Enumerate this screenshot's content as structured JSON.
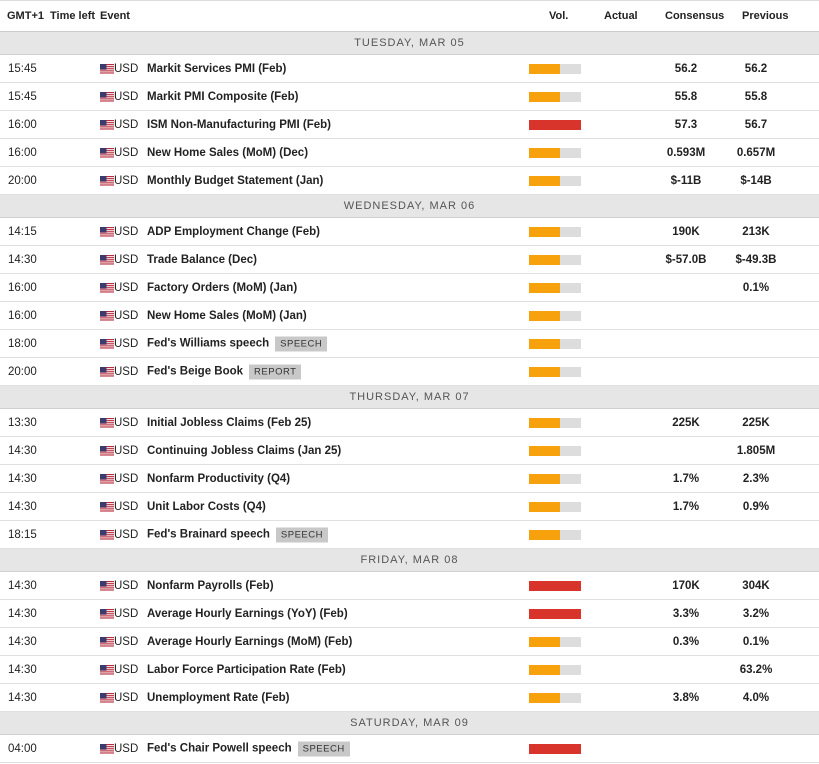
{
  "header": {
    "columns": [
      "GMT+1",
      "Time left",
      "Event",
      "Vol.",
      "Actual",
      "Consensus",
      "Previous"
    ]
  },
  "days": [
    {
      "title": "TUESDAY, MAR 05",
      "rows": [
        {
          "time": "15:45",
          "currency": "USD",
          "event": "Markit Services PMI (Feb)",
          "vol": "medium",
          "consensus": "56.2",
          "previous": "56.2"
        },
        {
          "time": "15:45",
          "currency": "USD",
          "event": "Markit PMI Composite (Feb)",
          "vol": "medium",
          "consensus": "55.8",
          "previous": "55.8"
        },
        {
          "time": "16:00",
          "currency": "USD",
          "event": "ISM Non-Manufacturing PMI (Feb)",
          "vol": "high",
          "consensus": "57.3",
          "previous": "56.7"
        },
        {
          "time": "16:00",
          "currency": "USD",
          "event": "New Home Sales (MoM) (Dec)",
          "vol": "medium",
          "consensus": "0.593M",
          "previous": "0.657M"
        },
        {
          "time": "20:00",
          "currency": "USD",
          "event": "Monthly Budget Statement (Jan)",
          "vol": "medium",
          "consensus": "$-11B",
          "previous": "$-14B"
        }
      ]
    },
    {
      "title": "WEDNESDAY, MAR 06",
      "rows": [
        {
          "time": "14:15",
          "currency": "USD",
          "event": "ADP Employment Change (Feb)",
          "vol": "medium",
          "consensus": "190K",
          "previous": "213K"
        },
        {
          "time": "14:30",
          "currency": "USD",
          "event": "Trade Balance (Dec)",
          "vol": "medium",
          "consensus": "$-57.0B",
          "previous": "$-49.3B"
        },
        {
          "time": "16:00",
          "currency": "USD",
          "event": "Factory Orders (MoM) (Jan)",
          "vol": "medium",
          "previous": "0.1%"
        },
        {
          "time": "16:00",
          "currency": "USD",
          "event": "New Home Sales (MoM) (Jan)",
          "vol": "medium"
        },
        {
          "time": "18:00",
          "currency": "USD",
          "event": "Fed's Williams speech",
          "tag": "SPEECH",
          "vol": "medium"
        },
        {
          "time": "20:00",
          "currency": "USD",
          "event": "Fed's Beige Book",
          "tag": "REPORT",
          "vol": "medium"
        }
      ]
    },
    {
      "title": "THURSDAY, MAR 07",
      "rows": [
        {
          "time": "13:30",
          "currency": "USD",
          "event": "Initial Jobless Claims (Feb 25)",
          "vol": "medium",
          "consensus": "225K",
          "previous": "225K"
        },
        {
          "time": "14:30",
          "currency": "USD",
          "event": "Continuing Jobless Claims (Jan 25)",
          "vol": "medium",
          "previous": "1.805M"
        },
        {
          "time": "14:30",
          "currency": "USD",
          "event": "Nonfarm Productivity (Q4)",
          "vol": "medium",
          "consensus": "1.7%",
          "previous": "2.3%"
        },
        {
          "time": "14:30",
          "currency": "USD",
          "event": "Unit Labor Costs (Q4)",
          "vol": "medium",
          "consensus": "1.7%",
          "previous": "0.9%"
        },
        {
          "time": "18:15",
          "currency": "USD",
          "event": "Fed's Brainard speech",
          "tag": "SPEECH",
          "vol": "medium"
        }
      ]
    },
    {
      "title": "FRIDAY, MAR 08",
      "rows": [
        {
          "time": "14:30",
          "currency": "USD",
          "event": "Nonfarm Payrolls (Feb)",
          "vol": "high",
          "consensus": "170K",
          "previous": "304K"
        },
        {
          "time": "14:30",
          "currency": "USD",
          "event": "Average Hourly Earnings (YoY) (Feb)",
          "vol": "high",
          "consensus": "3.3%",
          "previous": "3.2%"
        },
        {
          "time": "14:30",
          "currency": "USD",
          "event": "Average Hourly Earnings (MoM) (Feb)",
          "vol": "medium",
          "consensus": "0.3%",
          "previous": "0.1%"
        },
        {
          "time": "14:30",
          "currency": "USD",
          "event": "Labor Force Participation Rate (Feb)",
          "vol": "medium",
          "previous": "63.2%"
        },
        {
          "time": "14:30",
          "currency": "USD",
          "event": "Unemployment Rate (Feb)",
          "vol": "medium",
          "consensus": "3.8%",
          "previous": "4.0%"
        }
      ]
    },
    {
      "title": "SATURDAY, MAR 09",
      "rows": [
        {
          "time": "04:00",
          "currency": "USD",
          "event": "Fed's Chair Powell speech",
          "tag": "SPEECH",
          "vol": "high"
        }
      ]
    }
  ]
}
